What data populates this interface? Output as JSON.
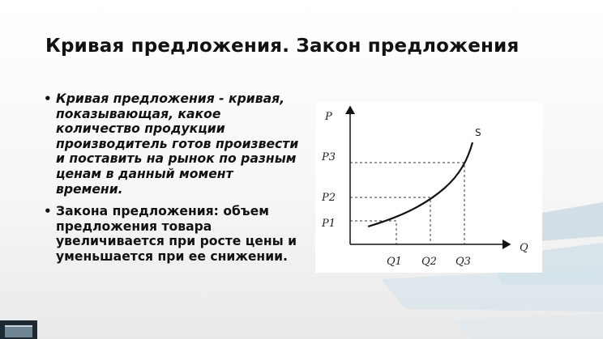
{
  "slide": {
    "title": "Кривая предложения. Закон предложения",
    "bullets": [
      {
        "text": "Кривая предложения  - кривая, показывающая, какое количество продукции производитель готов произвести и поставить на рынок по разным ценам в данный момент времени.",
        "style": "bold-italic"
      },
      {
        "text": "Закона предложения: объем предложения товара увеличивается при росте цены и уменьшается при ее снижении.",
        "style": "bold"
      }
    ],
    "bullet_symbol": "•"
  },
  "diagram": {
    "y_axis_label": "P",
    "x_axis_label": "Q",
    "curve_label": "S",
    "price_labels": [
      "P1",
      "P2",
      "P3"
    ],
    "quantity_labels": [
      "Q1",
      "Q2",
      "Q3"
    ]
  },
  "colors": {
    "title": "#111111",
    "text": "#111111",
    "deco_blue": "#bfd3df",
    "curve": "#111111"
  }
}
